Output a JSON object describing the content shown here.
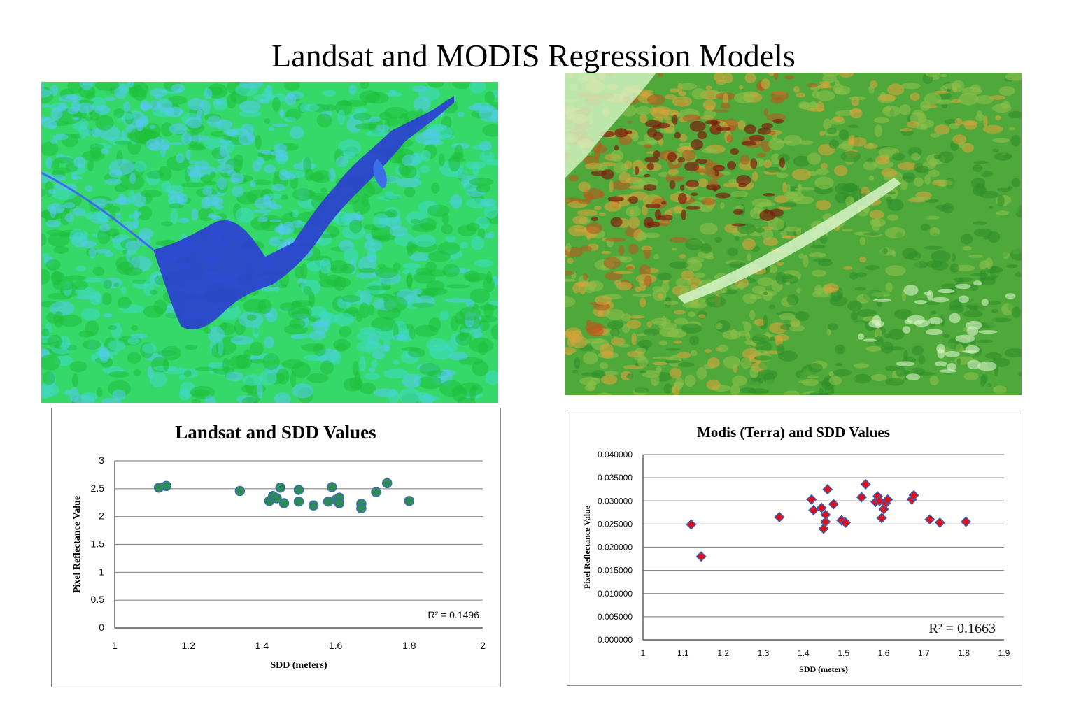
{
  "slide": {
    "title": "Landsat and MODIS Regression Models"
  },
  "maps": {
    "landsat": {
      "palette": [
        "#1fbf3a",
        "#34d96a",
        "#3fd9c9",
        "#56c8f2",
        "#3b6fe8",
        "#2a3fd0"
      ],
      "icon": "raster-map"
    },
    "modis": {
      "palette": [
        "#2f8f2a",
        "#4fa83a",
        "#8cc04a",
        "#d9a43a",
        "#b85a1e",
        "#7a1f0e",
        "#d8f5c8"
      ],
      "icon": "raster-map"
    }
  },
  "chart_data": [
    {
      "type": "scatter",
      "title": "Landsat and SDD Values",
      "xlabel": "SDD (meters)",
      "ylabel": "Pixel Reflectance Value",
      "xlim": [
        1,
        2
      ],
      "ylim": [
        0,
        3
      ],
      "xticks": [
        "1",
        "1.2",
        "1.4",
        "1.6",
        "1.8",
        "2"
      ],
      "yticks": [
        "0",
        "0.5",
        "1",
        "1.5",
        "2",
        "2.5",
        "3"
      ],
      "grid": "horizontal",
      "annotation": "R² = 0.1496",
      "marker": {
        "shape": "circle",
        "fill": "#2e8b57",
        "stroke": "#3a6fb0"
      },
      "points": [
        {
          "x": 1.12,
          "y": 2.52
        },
        {
          "x": 1.14,
          "y": 2.55
        },
        {
          "x": 1.34,
          "y": 2.46
        },
        {
          "x": 1.42,
          "y": 2.28
        },
        {
          "x": 1.43,
          "y": 2.37
        },
        {
          "x": 1.44,
          "y": 2.33
        },
        {
          "x": 1.45,
          "y": 2.52
        },
        {
          "x": 1.46,
          "y": 2.24
        },
        {
          "x": 1.5,
          "y": 2.48
        },
        {
          "x": 1.5,
          "y": 2.27
        },
        {
          "x": 1.54,
          "y": 2.2
        },
        {
          "x": 1.58,
          "y": 2.27
        },
        {
          "x": 1.59,
          "y": 2.53
        },
        {
          "x": 1.6,
          "y": 2.3
        },
        {
          "x": 1.61,
          "y": 2.34
        },
        {
          "x": 1.61,
          "y": 2.24
        },
        {
          "x": 1.67,
          "y": 2.23
        },
        {
          "x": 1.67,
          "y": 2.15
        },
        {
          "x": 1.71,
          "y": 2.44
        },
        {
          "x": 1.74,
          "y": 2.6
        },
        {
          "x": 1.8,
          "y": 2.28
        }
      ]
    },
    {
      "type": "scatter",
      "title": "Modis (Terra) and SDD Values",
      "xlabel": "SDD (meters)",
      "ylabel": "Pixel Reflectance Value",
      "xlim": [
        1,
        1.9
      ],
      "ylim": [
        0,
        0.04
      ],
      "xticks": [
        "1",
        "1.1",
        "1.2",
        "1.3",
        "1.4",
        "1.5",
        "1.6",
        "1.7",
        "1.8",
        "1.9"
      ],
      "yticks": [
        "0.000000",
        "0.005000",
        "0.010000",
        "0.015000",
        "0.020000",
        "0.025000",
        "0.030000",
        "0.035000",
        "0.040000"
      ],
      "grid": "horizontal",
      "annotation": "R² = 0.1663",
      "marker": {
        "shape": "diamond",
        "fill": "#e0101a",
        "stroke": "#3a5fb0"
      },
      "points": [
        {
          "x": 1.12,
          "y": 0.0249
        },
        {
          "x": 1.145,
          "y": 0.018
        },
        {
          "x": 1.34,
          "y": 0.0265
        },
        {
          "x": 1.42,
          "y": 0.0303
        },
        {
          "x": 1.425,
          "y": 0.028
        },
        {
          "x": 1.445,
          "y": 0.0285
        },
        {
          "x": 1.45,
          "y": 0.024
        },
        {
          "x": 1.455,
          "y": 0.0255
        },
        {
          "x": 1.455,
          "y": 0.027
        },
        {
          "x": 1.46,
          "y": 0.0325
        },
        {
          "x": 1.475,
          "y": 0.0293
        },
        {
          "x": 1.495,
          "y": 0.0258
        },
        {
          "x": 1.505,
          "y": 0.0253
        },
        {
          "x": 1.545,
          "y": 0.0308
        },
        {
          "x": 1.555,
          "y": 0.0336
        },
        {
          "x": 1.58,
          "y": 0.0298
        },
        {
          "x": 1.585,
          "y": 0.031
        },
        {
          "x": 1.59,
          "y": 0.03
        },
        {
          "x": 1.595,
          "y": 0.0263
        },
        {
          "x": 1.6,
          "y": 0.0282
        },
        {
          "x": 1.605,
          "y": 0.0295
        },
        {
          "x": 1.61,
          "y": 0.0303
        },
        {
          "x": 1.67,
          "y": 0.0303
        },
        {
          "x": 1.675,
          "y": 0.0312
        },
        {
          "x": 1.715,
          "y": 0.026
        },
        {
          "x": 1.74,
          "y": 0.0253
        },
        {
          "x": 1.805,
          "y": 0.0255
        }
      ]
    }
  ]
}
